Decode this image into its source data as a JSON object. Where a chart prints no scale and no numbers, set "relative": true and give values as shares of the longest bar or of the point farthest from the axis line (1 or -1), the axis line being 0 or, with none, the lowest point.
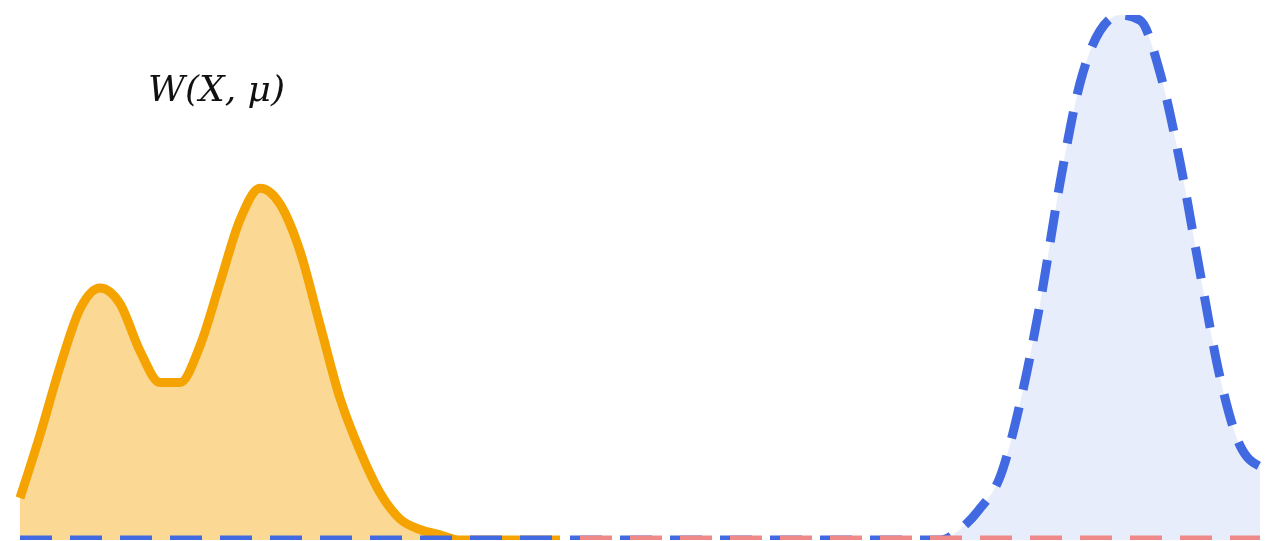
{
  "chart_data": {
    "type": "area",
    "relative": true,
    "marker": "none",
    "annotations": [
      "W(X, μ)"
    ],
    "categories": [
      null,
      null,
      null,
      null,
      null,
      null,
      null,
      null,
      null,
      null,
      null,
      null,
      null,
      null,
      null,
      null,
      null,
      null,
      null,
      null,
      null,
      null,
      null,
      null,
      null,
      null,
      null,
      null,
      null,
      null,
      null,
      null,
      null,
      null,
      null,
      null,
      null,
      null,
      null,
      null,
      null,
      null,
      null,
      null,
      null,
      null,
      null,
      null,
      null,
      null,
      null,
      null,
      null,
      null,
      null,
      null,
      null,
      null,
      null,
      null,
      null,
      null,
      null
    ],
    "series": [
      {
        "line_style": "solid",
        "color": "#f5a300",
        "values": [
          0.08,
          0.2,
          0.33,
          0.44,
          0.48,
          0.45,
          0.36,
          0.3,
          0.3,
          0.37,
          0.49,
          0.61,
          0.67,
          0.64,
          0.55,
          0.41,
          0.27,
          0.17,
          0.09,
          0.04,
          0.02,
          0.01,
          0,
          0,
          0,
          0,
          0,
          0,
          null,
          null,
          null,
          null,
          null,
          null,
          null,
          null,
          null,
          null,
          null,
          null,
          null,
          null,
          null,
          null,
          null,
          null,
          null,
          null,
          null,
          null,
          null,
          null,
          null,
          null,
          null,
          null,
          null,
          null,
          null,
          null,
          null,
          null,
          null
        ]
      },
      {
        "line_style": "dashed",
        "color": "#4169e1",
        "values": [
          0,
          0,
          0,
          0,
          0,
          0,
          0,
          0,
          0,
          0,
          0,
          0,
          0,
          0,
          0,
          0,
          0,
          0,
          0,
          0,
          0,
          0,
          0,
          0,
          0,
          0,
          0,
          0,
          0,
          0,
          0,
          0,
          0,
          0,
          0,
          0,
          0,
          0,
          0,
          0,
          0,
          0,
          0,
          0,
          0,
          0,
          0,
          0.02,
          0.06,
          0.12,
          0.26,
          0.45,
          0.68,
          0.87,
          0.97,
          1,
          0.99,
          0.89,
          0.72,
          0.51,
          0.31,
          0.18,
          0.14
        ]
      },
      {
        "type": "line",
        "line_style": "dashed",
        "color": "#f08a8a",
        "values": [
          null,
          null,
          null,
          null,
          null,
          null,
          null,
          null,
          null,
          null,
          null,
          null,
          null,
          null,
          null,
          null,
          null,
          null,
          null,
          null,
          null,
          null,
          null,
          null,
          null,
          null,
          null,
          null,
          0,
          0,
          0,
          0,
          0,
          0,
          0,
          0,
          0,
          0,
          0,
          0,
          0,
          0,
          0,
          0,
          0,
          0,
          0,
          0,
          0,
          0,
          0,
          0,
          0,
          0,
          0,
          0,
          0,
          0,
          0,
          0,
          0,
          0,
          0
        ]
      }
    ]
  }
}
